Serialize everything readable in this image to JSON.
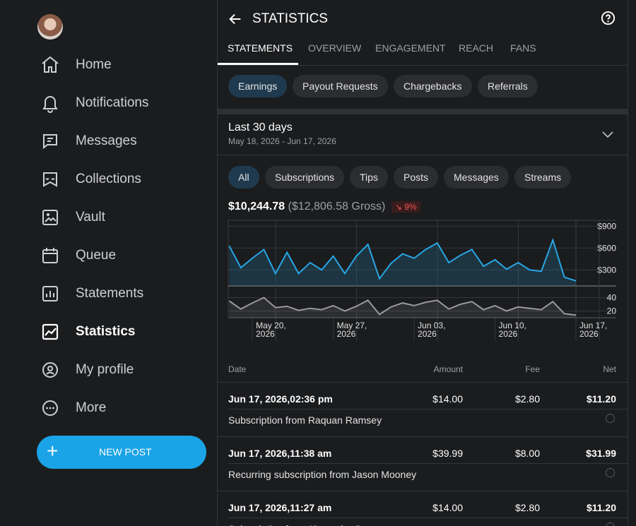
{
  "sidebar": {
    "nav": [
      "Home",
      "Notifications",
      "Messages",
      "Collections",
      "Vault",
      "Queue",
      "Statements",
      "Statistics",
      "My profile",
      "More"
    ],
    "active": "Statistics",
    "new_post": "NEW POST"
  },
  "header": {
    "title": "STATISTICS"
  },
  "tabs": [
    "STATEMENTS",
    "OVERVIEW",
    "ENGAGEMENT",
    "REACH",
    "FANS"
  ],
  "subtabs": [
    "Earnings",
    "Payout Requests",
    "Chargebacks",
    "Referrals"
  ],
  "period": {
    "title": "Last 30 days",
    "range": "May 18, 2026 - Jun 17, 2026"
  },
  "filters": [
    "All",
    "Subscriptions",
    "Tips",
    "Posts",
    "Messages",
    "Streams"
  ],
  "summary": {
    "net": "$10,244.78",
    "gross": "($12,806.58 Gross)",
    "change": "9%"
  },
  "chart_data": [
    {
      "type": "line",
      "x": [
        "2026-05-18",
        "2026-05-19",
        "2026-05-20",
        "2026-05-21",
        "2026-05-22",
        "2026-05-23",
        "2026-05-24",
        "2026-05-25",
        "2026-05-26",
        "2026-05-27",
        "2026-05-28",
        "2026-05-29",
        "2026-05-30",
        "2026-05-31",
        "2026-06-01",
        "2026-06-02",
        "2026-06-03",
        "2026-06-04",
        "2026-06-05",
        "2026-06-06",
        "2026-06-07",
        "2026-06-08",
        "2026-06-09",
        "2026-06-10",
        "2026-06-11",
        "2026-06-12",
        "2026-06-13",
        "2026-06-14",
        "2026-06-15",
        "2026-06-16",
        "2026-06-17"
      ],
      "xticks": [
        {
          "value": "2026-05-20",
          "label": "May 20, 2026"
        },
        {
          "value": "2026-05-27",
          "label": "May 27, 2026"
        },
        {
          "value": "2026-06-03",
          "label": "Jun 03, 2026"
        },
        {
          "value": "2026-06-10",
          "label": "Jun 10, 2026"
        },
        {
          "value": "2026-06-17",
          "label": "Jun 17, 2026"
        }
      ],
      "series": [
        {
          "color": "#27a6e5",
          "values": [
            630,
            330,
            460,
            580,
            250,
            540,
            250,
            400,
            300,
            490,
            250,
            490,
            650,
            180,
            390,
            520,
            460,
            580,
            670,
            400,
            500,
            580,
            350,
            440,
            310,
            400,
            300,
            280,
            710,
            200,
            150
          ]
        }
      ],
      "ylim": [
        80,
        1000
      ],
      "yticks": [
        {
          "value": 300,
          "label": "$300"
        },
        {
          "value": 600,
          "label": "$600"
        },
        {
          "value": 900,
          "label": "$900"
        }
      ]
    },
    {
      "type": "line",
      "x": [
        "2026-05-18",
        "2026-05-19",
        "2026-05-20",
        "2026-05-21",
        "2026-05-22",
        "2026-05-23",
        "2026-05-24",
        "2026-05-25",
        "2026-05-26",
        "2026-05-27",
        "2026-05-28",
        "2026-05-29",
        "2026-05-30",
        "2026-05-31",
        "2026-06-01",
        "2026-06-02",
        "2026-06-03",
        "2026-06-04",
        "2026-06-05",
        "2026-06-06",
        "2026-06-07",
        "2026-06-08",
        "2026-06-09",
        "2026-06-10",
        "2026-06-11",
        "2026-06-12",
        "2026-06-13",
        "2026-06-14",
        "2026-06-15",
        "2026-06-16",
        "2026-06-17"
      ],
      "series": [
        {
          "color": "#9a9a9a",
          "values": [
            35,
            23,
            32,
            40,
            25,
            27,
            21,
            24,
            22,
            28,
            20,
            27,
            36,
            15,
            26,
            32,
            28,
            33,
            36,
            23,
            30,
            34,
            22,
            28,
            20,
            26,
            24,
            22,
            34,
            16,
            14
          ]
        }
      ],
      "ylim": [
        10,
        50
      ],
      "yticks": [
        20,
        40
      ]
    }
  ],
  "table": {
    "columns": [
      "Date",
      "Amount",
      "Fee",
      "Net"
    ],
    "rows": [
      {
        "date": "Jun 17, 2026,02:36 pm",
        "amount": "$14.00",
        "fee": "$2.80",
        "net": "$11.20",
        "description": "Subscription from Raquan Ramsey"
      },
      {
        "date": "Jun 17, 2026,11:38 am",
        "amount": "$39.99",
        "fee": "$8.00",
        "net": "$31.99",
        "description": "Recurring subscription from Jason Mooney"
      },
      {
        "date": "Jun 17, 2026,11:27 am",
        "amount": "$14.00",
        "fee": "$2.80",
        "net": "$11.20",
        "description": "Subscription from Alexander S"
      }
    ]
  }
}
